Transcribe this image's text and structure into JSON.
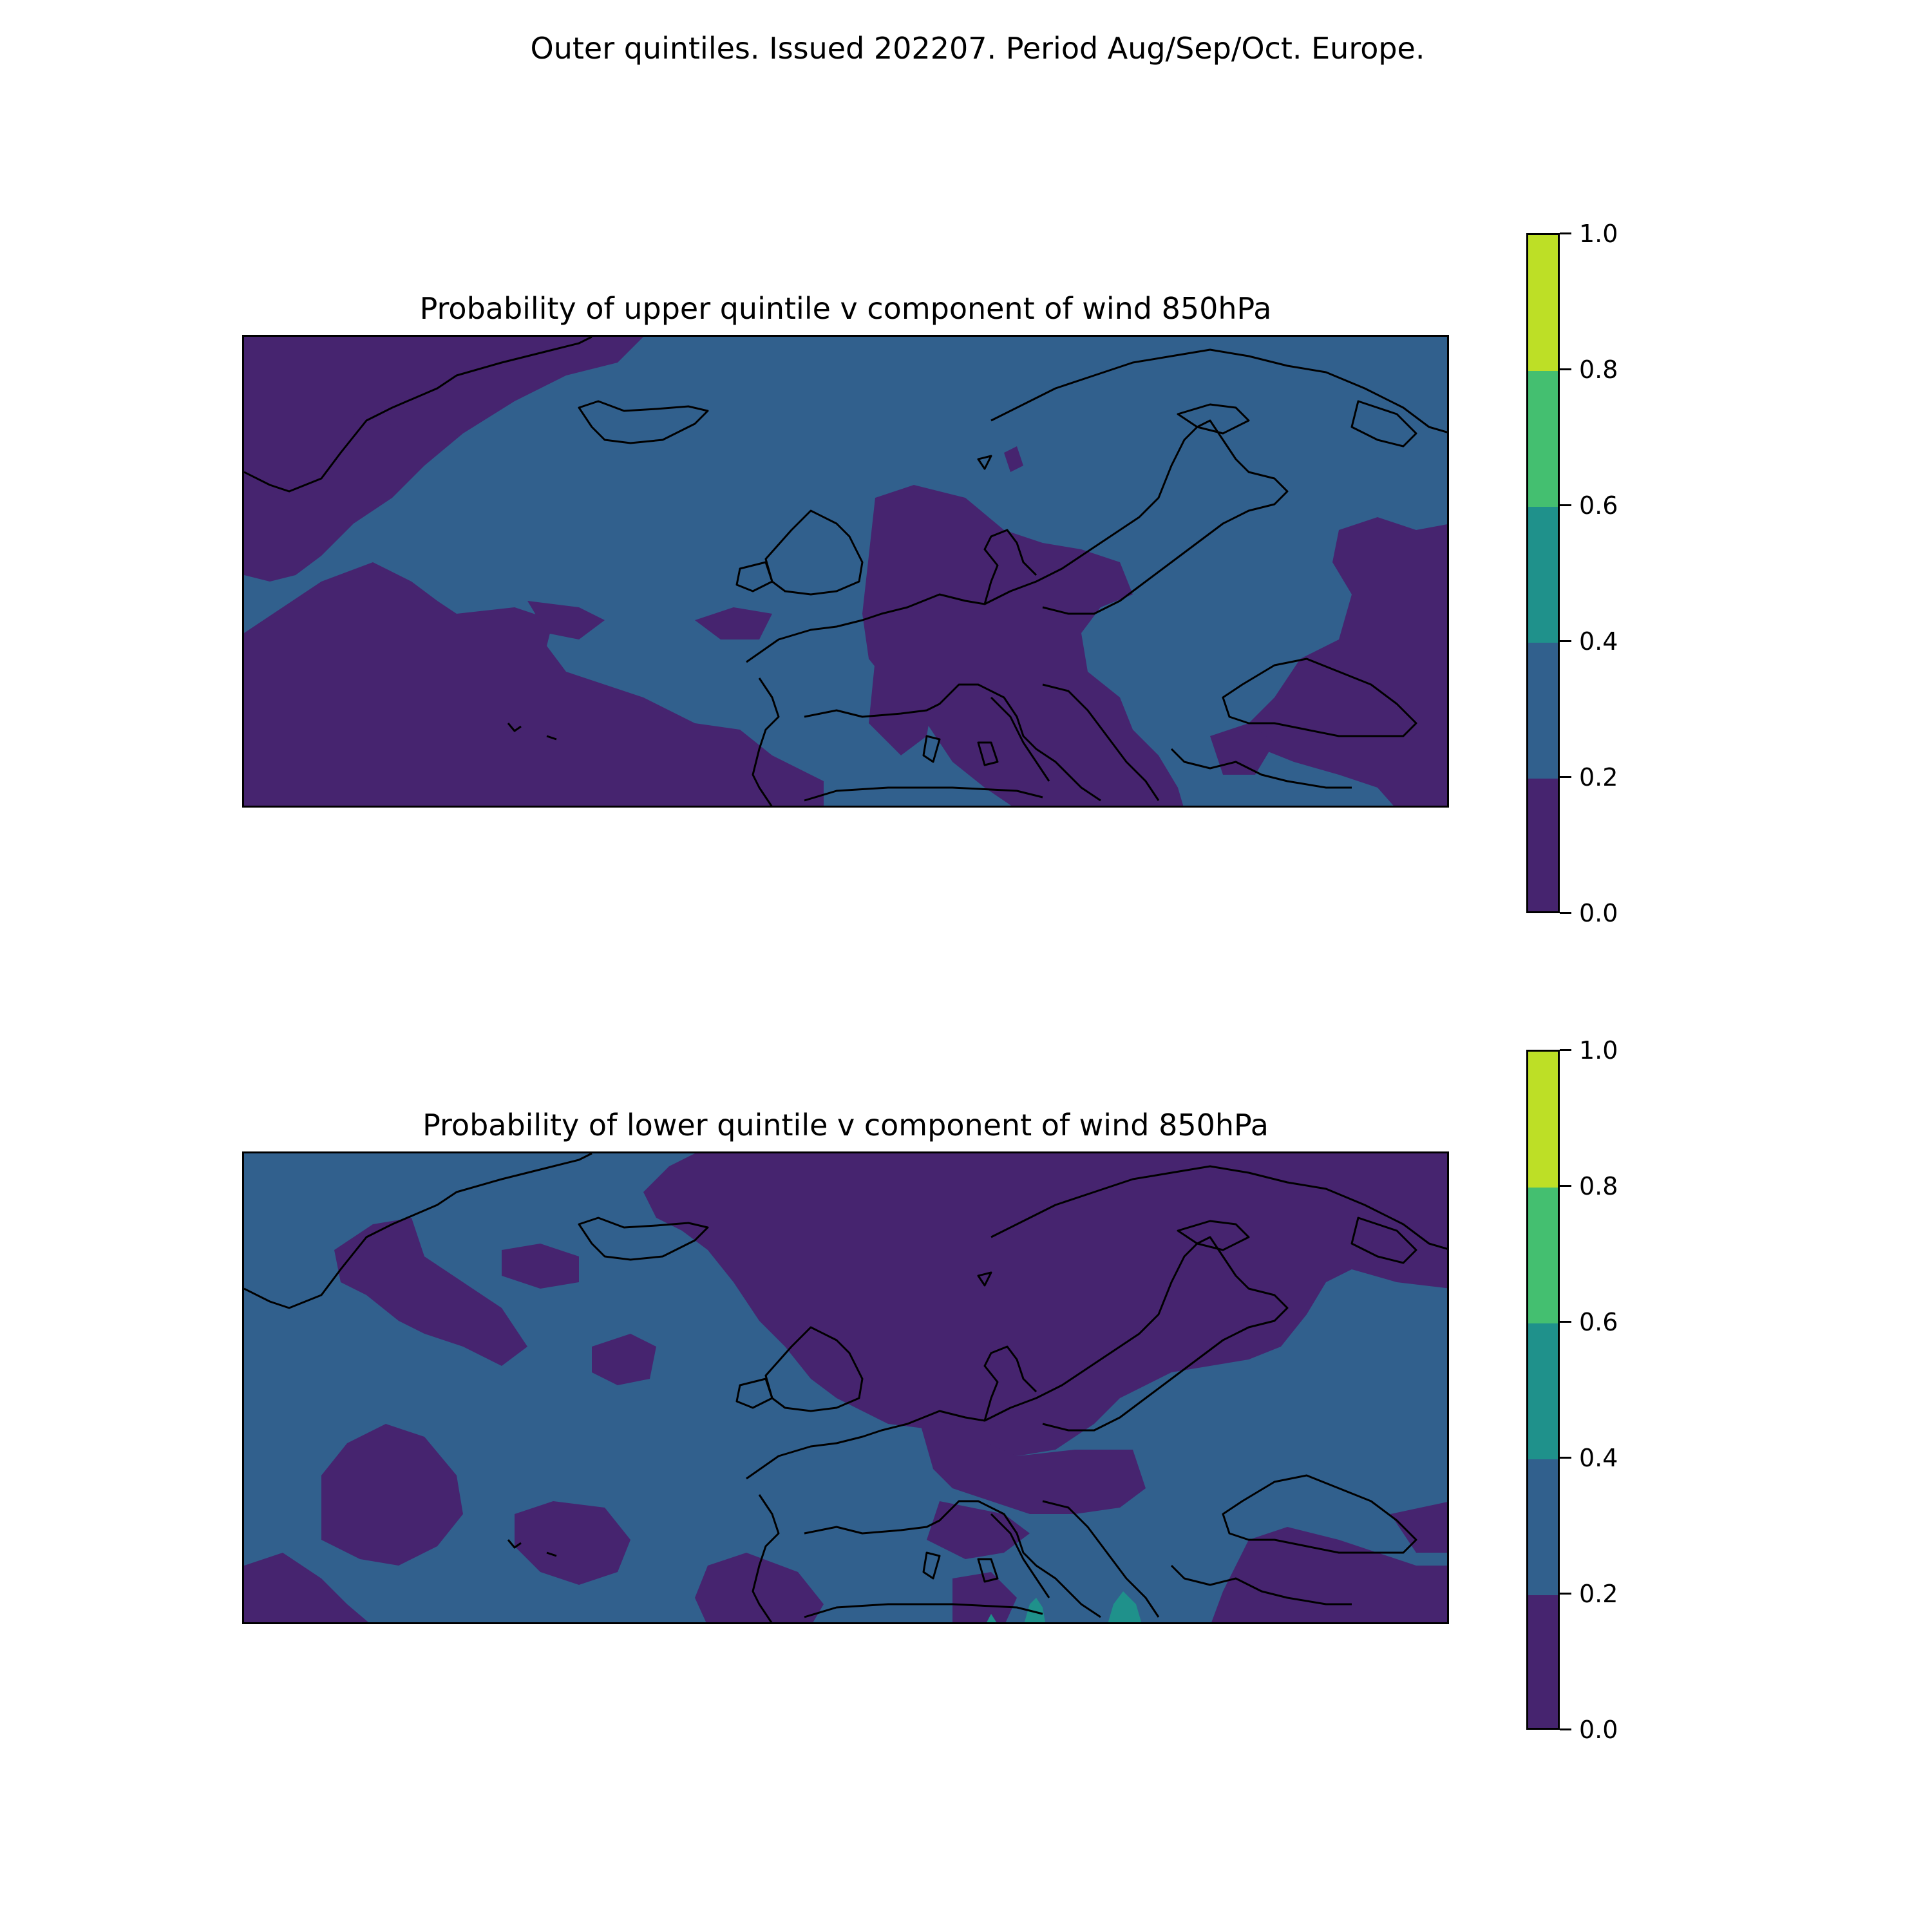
{
  "figure": {
    "suptitle": "Outer quintiles. Issued 202207. Period Aug/Sep/Oct. Europe."
  },
  "levels": [
    0.0,
    0.2,
    0.4,
    0.6,
    0.8,
    1.0
  ],
  "tick_labels": [
    "0.0",
    "0.2",
    "0.4",
    "0.6",
    "0.8",
    "1.0"
  ],
  "colors": {
    "band_0_0.2": "#46246f",
    "band_0.2_0.4": "#31608d",
    "band_0.4_0.6": "#1f918b",
    "band_0.6_0.8": "#44bf70",
    "band_0.8_1.0": "#bddf26",
    "coastline": "#000000"
  },
  "panels": [
    {
      "id": "upper",
      "title": "Probability of upper quintile v component of wind 850hPa",
      "region": "Europe / North Atlantic",
      "background_band": "0.2-0.4",
      "feature_bands": [
        "0.0-0.2"
      ]
    },
    {
      "id": "lower",
      "title": "Probability of lower quintile v component of wind 850hPa",
      "region": "Europe / North Atlantic",
      "background_band": "0.2-0.4",
      "feature_bands": [
        "0.0-0.2",
        "0.4-0.6"
      ]
    }
  ]
}
